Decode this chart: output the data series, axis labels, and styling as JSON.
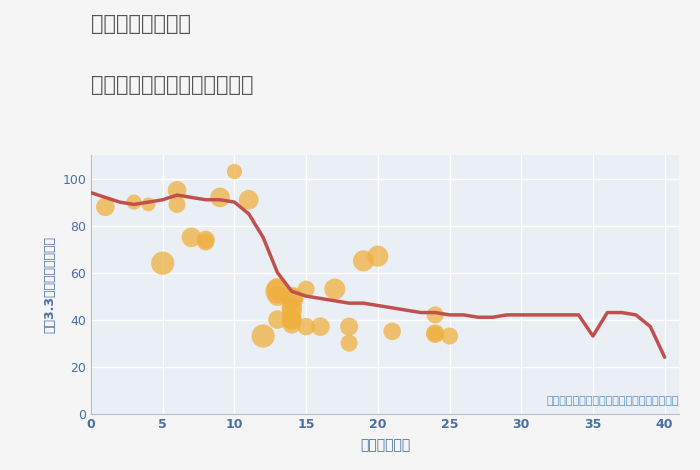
{
  "title_line1": "千葉県市原市徳氏",
  "title_line2": "築年数別中古マンション価格",
  "xlabel": "築年数（年）",
  "ylabel": "坪（3.3㎡）単価（万円）",
  "annotation": "円の大きさは、取引のあった物件面積を示す",
  "fig_bg_color": "#f5f5f5",
  "plot_bg_color": "#eaeff5",
  "grid_color": "#ffffff",
  "line_color": "#c0504d",
  "scatter_color": "#f0b040",
  "scatter_alpha": 0.75,
  "title_color": "#555555",
  "axis_label_color": "#4a6fa5",
  "tick_color": "#4a6fa5",
  "annotation_color": "#5b8db8",
  "xlim": [
    0,
    41
  ],
  "ylim": [
    0,
    110
  ],
  "xticks": [
    0,
    5,
    10,
    15,
    20,
    25,
    30,
    35,
    40
  ],
  "yticks": [
    0,
    20,
    40,
    60,
    80,
    100
  ],
  "line_x": [
    0,
    2,
    3,
    4,
    5,
    6,
    7,
    8,
    9,
    10,
    11,
    12,
    13,
    14,
    15,
    16,
    17,
    18,
    19,
    20,
    21,
    22,
    23,
    24,
    25,
    26,
    27,
    28,
    29,
    30,
    31,
    32,
    33,
    34,
    35,
    36,
    37,
    38,
    39,
    40
  ],
  "line_y": [
    94,
    90,
    89,
    90,
    91,
    93,
    92,
    91,
    91,
    90,
    85,
    75,
    60,
    52,
    50,
    49,
    48,
    47,
    47,
    46,
    45,
    44,
    43,
    43,
    42,
    42,
    41,
    41,
    42,
    42,
    42,
    42,
    42,
    42,
    33,
    43,
    43,
    42,
    37,
    24
  ],
  "scatter_x": [
    1,
    3,
    4,
    5,
    6,
    6,
    7,
    8,
    8,
    9,
    10,
    11,
    12,
    13,
    13,
    13,
    13,
    14,
    14,
    14,
    14,
    14,
    14,
    14,
    15,
    15,
    16,
    17,
    18,
    18,
    19,
    20,
    21,
    24,
    24,
    24,
    25
  ],
  "scatter_y": [
    88,
    90,
    89,
    64,
    95,
    89,
    75,
    74,
    73,
    92,
    103,
    91,
    33,
    52,
    53,
    50,
    40,
    49,
    49,
    45,
    43,
    40,
    40,
    38,
    53,
    37,
    37,
    53,
    30,
    37,
    65,
    67,
    35,
    42,
    34,
    34,
    33
  ],
  "scatter_size": [
    180,
    120,
    100,
    280,
    180,
    150,
    200,
    170,
    150,
    200,
    120,
    200,
    280,
    300,
    250,
    200,
    180,
    280,
    230,
    220,
    200,
    200,
    200,
    180,
    150,
    160,
    180,
    230,
    150,
    170,
    230,
    230,
    160,
    150,
    180,
    130,
    150
  ]
}
